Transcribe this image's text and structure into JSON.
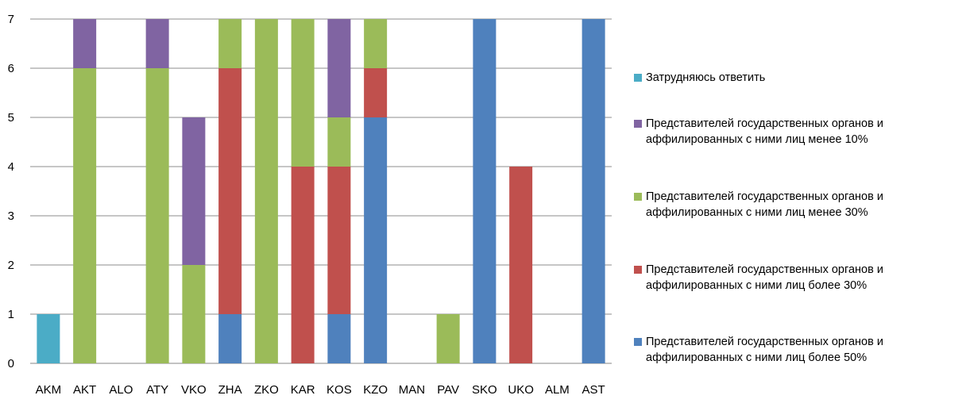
{
  "chart_data": {
    "type": "bar",
    "stacked": true,
    "categories": [
      "AKM",
      "AKT",
      "ALO",
      "ATY",
      "VKO",
      "ZHA",
      "ZKO",
      "KAR",
      "KOS",
      "KZO",
      "MAN",
      "PAV",
      "SKO",
      "UKO",
      "ALM",
      "AST"
    ],
    "ylim": [
      0,
      7
    ],
    "yticks": [
      0,
      1,
      2,
      3,
      4,
      5,
      6,
      7
    ],
    "grid": "horizontal",
    "legend_position": "right",
    "series": [
      {
        "name": "Представителей государственных органов и\nаффилированных с ними лиц более 50%",
        "color": "#4F81BD",
        "values": [
          0,
          0,
          0,
          0,
          0,
          1,
          0,
          0,
          1,
          5,
          0,
          0,
          7,
          0,
          0,
          7
        ]
      },
      {
        "name": "Представителей государственных органов и\nаффилированных с ними лиц более 30%",
        "color": "#C0504D",
        "values": [
          0,
          0,
          0,
          0,
          0,
          5,
          0,
          4,
          3,
          1,
          0,
          0,
          0,
          4,
          0,
          0
        ]
      },
      {
        "name": "Представителей государственных органов и\nаффилированных с ними лиц менее 30%",
        "color": "#9BBB59",
        "values": [
          0,
          6,
          0,
          6,
          2,
          1,
          7,
          3,
          1,
          1,
          0,
          1,
          0,
          0,
          0,
          0
        ]
      },
      {
        "name": "Представителей государственных органов и\nаффилированных с ними лиц менее 10%",
        "color": "#8064A2",
        "values": [
          0,
          1,
          0,
          1,
          3,
          0,
          0,
          0,
          2,
          0,
          0,
          0,
          0,
          0,
          0,
          0
        ]
      },
      {
        "name": "Затрудняюсь ответить",
        "color": "#4BACC6",
        "values": [
          1,
          0,
          0,
          0,
          0,
          0,
          0,
          0,
          0,
          0,
          0,
          0,
          0,
          0,
          0,
          0
        ]
      }
    ]
  }
}
